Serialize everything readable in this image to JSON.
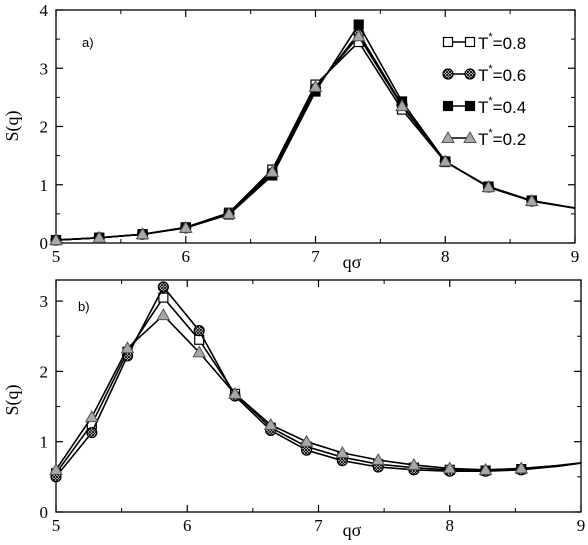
{
  "chart_data": [
    {
      "type": "line",
      "panel_label": "a)",
      "xlabel": "qσ",
      "ylabel": "S(q)",
      "xlim": [
        5,
        9
      ],
      "ylim": [
        0,
        4
      ],
      "xticks": [
        "5",
        "6",
        "7",
        "8",
        "9"
      ],
      "yticks": [
        "0",
        "1",
        "2",
        "3",
        "4"
      ],
      "legend_position": "top-right",
      "legend": [
        {
          "prefix": "T",
          "sup": "*",
          "suffix": "=0.8",
          "marker": "square-open"
        },
        {
          "prefix": "T",
          "sup": "*",
          "suffix": "=0.6",
          "marker": "circle-hatched"
        },
        {
          "prefix": "T",
          "sup": "*",
          "suffix": "=0.4",
          "marker": "square-filled"
        },
        {
          "prefix": "T",
          "sup": "*",
          "suffix": "=0.2",
          "marker": "triangle-gray"
        }
      ],
      "series": [
        {
          "name": "T*=0.8",
          "marker": "square-open",
          "x": [
            5.0,
            5.333,
            5.667,
            6.0,
            6.333,
            6.667,
            7.0,
            7.333,
            7.667,
            8.0,
            8.333,
            8.667,
            9.0
          ],
          "y": [
            0.05,
            0.09,
            0.15,
            0.27,
            0.52,
            1.26,
            2.72,
            3.45,
            2.29,
            1.39,
            0.97,
            0.73,
            0.6
          ],
          "marker_count": 12
        },
        {
          "name": "T*=0.6",
          "marker": "circle-hatched",
          "x": [
            5.0,
            5.333,
            5.667,
            6.0,
            6.333,
            6.667,
            7.0,
            7.333,
            7.667,
            8.0,
            8.333,
            8.667,
            9.0
          ],
          "y": [
            0.05,
            0.09,
            0.15,
            0.26,
            0.5,
            1.2,
            2.65,
            3.6,
            2.37,
            1.4,
            0.96,
            0.72,
            0.6
          ],
          "marker_count": 12
        },
        {
          "name": "T*=0.4",
          "marker": "square-filled",
          "x": [
            5.0,
            5.333,
            5.667,
            6.0,
            6.333,
            6.667,
            7.0,
            7.333,
            7.667,
            8.0,
            8.333,
            8.667,
            9.0
          ],
          "y": [
            0.05,
            0.09,
            0.15,
            0.26,
            0.49,
            1.16,
            2.6,
            3.75,
            2.43,
            1.4,
            0.96,
            0.72,
            0.6
          ],
          "marker_count": 12
        },
        {
          "name": "T*=0.2",
          "marker": "triangle-gray",
          "x": [
            5.0,
            5.333,
            5.667,
            6.0,
            6.333,
            6.667,
            7.0,
            7.333,
            7.667,
            8.0,
            8.333,
            8.667,
            9.0
          ],
          "y": [
            0.05,
            0.09,
            0.15,
            0.26,
            0.5,
            1.22,
            2.68,
            3.55,
            2.35,
            1.4,
            0.96,
            0.72,
            0.6
          ],
          "marker_count": 12
        }
      ]
    },
    {
      "type": "line",
      "panel_label": "b)",
      "xlabel": "qσ",
      "ylabel": "S(q)",
      "xlim": [
        5,
        9
      ],
      "ylim": [
        0,
        3.3
      ],
      "xticks": [
        "5",
        "6",
        "7",
        "8",
        "9"
      ],
      "yticks": [
        "0",
        "1",
        "2",
        "3"
      ],
      "series": [
        {
          "name": "T*=0.8",
          "marker": "square-open",
          "x": [
            5.0,
            5.273,
            5.545,
            5.818,
            6.091,
            6.364,
            6.636,
            6.909,
            7.182,
            7.455,
            7.727,
            8.0,
            8.273,
            8.545,
            8.818,
            9.091
          ],
          "y": [
            0.55,
            1.25,
            2.28,
            3.05,
            2.45,
            1.68,
            1.2,
            0.93,
            0.78,
            0.68,
            0.63,
            0.6,
            0.59,
            0.61,
            0.65,
            0.72
          ],
          "marker_count": 14
        },
        {
          "name": "T*=0.6",
          "marker": "circle-hatched",
          "x": [
            5.0,
            5.273,
            5.545,
            5.818,
            6.091,
            6.364,
            6.636,
            6.909,
            7.182,
            7.455,
            7.727,
            8.0,
            8.273,
            8.545,
            8.818,
            9.091
          ],
          "y": [
            0.5,
            1.13,
            2.22,
            3.2,
            2.58,
            1.65,
            1.16,
            0.88,
            0.73,
            0.64,
            0.6,
            0.58,
            0.58,
            0.6,
            0.65,
            0.72
          ],
          "marker_count": 14
        },
        {
          "name": "T*=0.2",
          "marker": "triangle-gray",
          "x": [
            5.0,
            5.273,
            5.545,
            5.818,
            6.091,
            6.364,
            6.636,
            6.909,
            7.182,
            7.455,
            7.727,
            8.0,
            8.273,
            8.545,
            8.818,
            9.091
          ],
          "y": [
            0.6,
            1.35,
            2.33,
            2.8,
            2.27,
            1.68,
            1.24,
            1.0,
            0.84,
            0.74,
            0.67,
            0.62,
            0.6,
            0.62,
            0.66,
            0.72
          ],
          "marker_count": 14
        }
      ]
    }
  ]
}
